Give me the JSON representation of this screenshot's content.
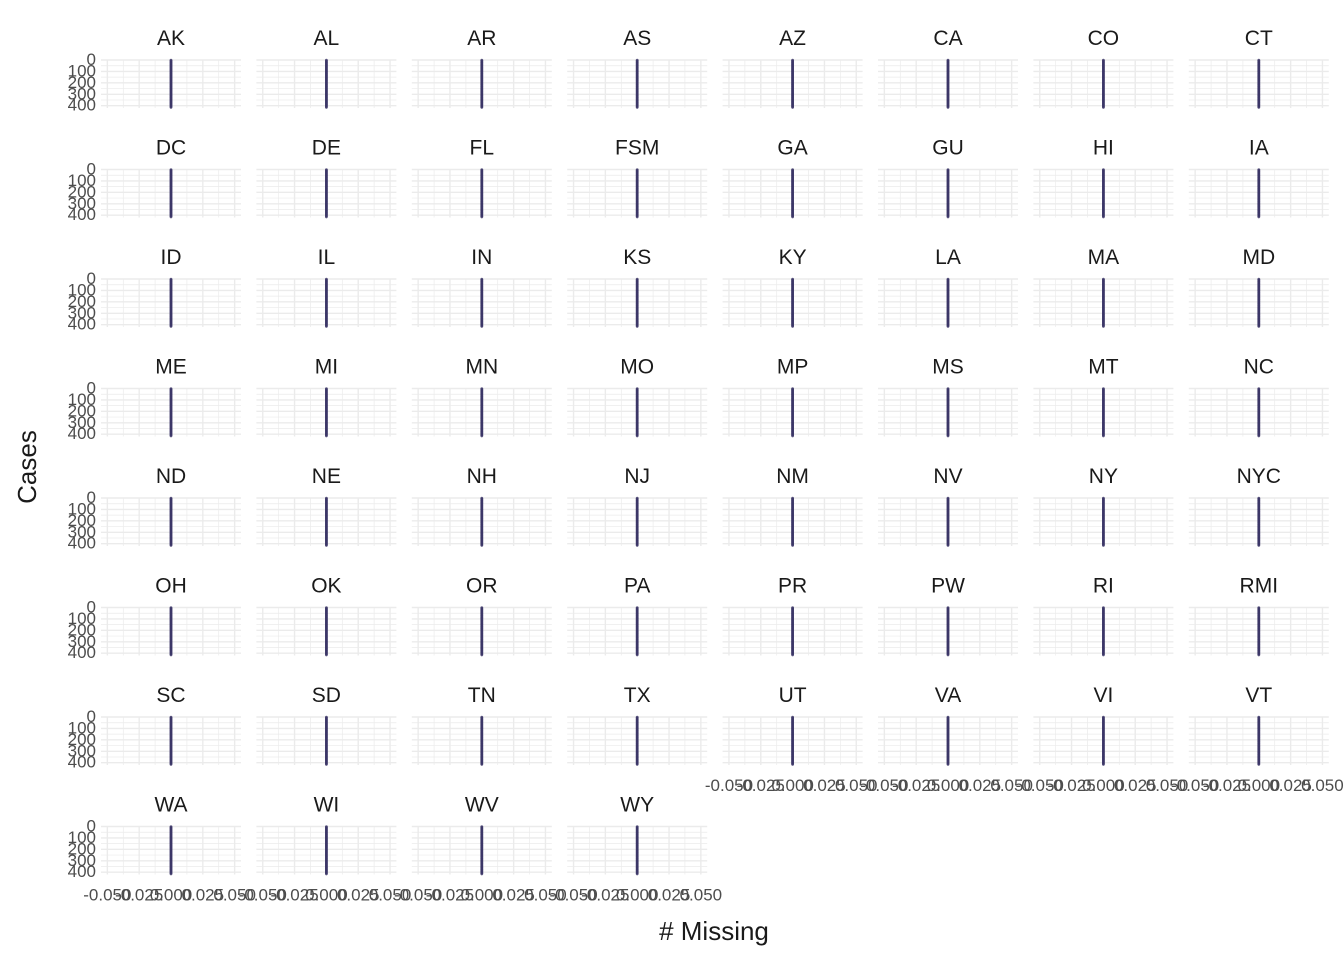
{
  "chart_data": {
    "type": "scatter",
    "xlabel": "# Missing",
    "ylabel": "Cases",
    "x_tick_labels": [
      "-0.050",
      "-0.025",
      "0.000",
      "0.025",
      "0.050"
    ],
    "x_ticks": [
      -0.05,
      -0.025,
      0,
      0.025,
      0.05
    ],
    "xlim": [
      -0.055,
      0.055
    ],
    "y_tick_labels": [
      "0",
      "100",
      "200",
      "300",
      "400"
    ],
    "y_ticks": [
      0,
      100,
      200,
      300,
      400
    ],
    "ylim": [
      0,
      420
    ],
    "y_reversed": true,
    "grid": true,
    "point_color": "#3B3567",
    "grid_color": "#EBEBEB",
    "panels": [
      "AK",
      "AL",
      "AR",
      "AS",
      "AZ",
      "CA",
      "CO",
      "CT",
      "DC",
      "DE",
      "FL",
      "FSM",
      "GA",
      "GU",
      "HI",
      "IA",
      "ID",
      "IL",
      "IN",
      "KS",
      "KY",
      "LA",
      "MA",
      "MD",
      "ME",
      "MI",
      "MN",
      "MO",
      "MP",
      "MS",
      "MT",
      "NC",
      "ND",
      "NE",
      "NH",
      "NJ",
      "NM",
      "NV",
      "NY",
      "NYC",
      "OH",
      "OK",
      "OR",
      "PA",
      "PR",
      "PW",
      "RI",
      "RMI",
      "SC",
      "SD",
      "TN",
      "TX",
      "UT",
      "VA",
      "VI",
      "VT",
      "WA",
      "WI",
      "WV",
      "WY"
    ],
    "series": [
      {
        "x": 0,
        "y_range": [
          1,
          420
        ],
        "note_points_per_panel": 420
      }
    ]
  }
}
